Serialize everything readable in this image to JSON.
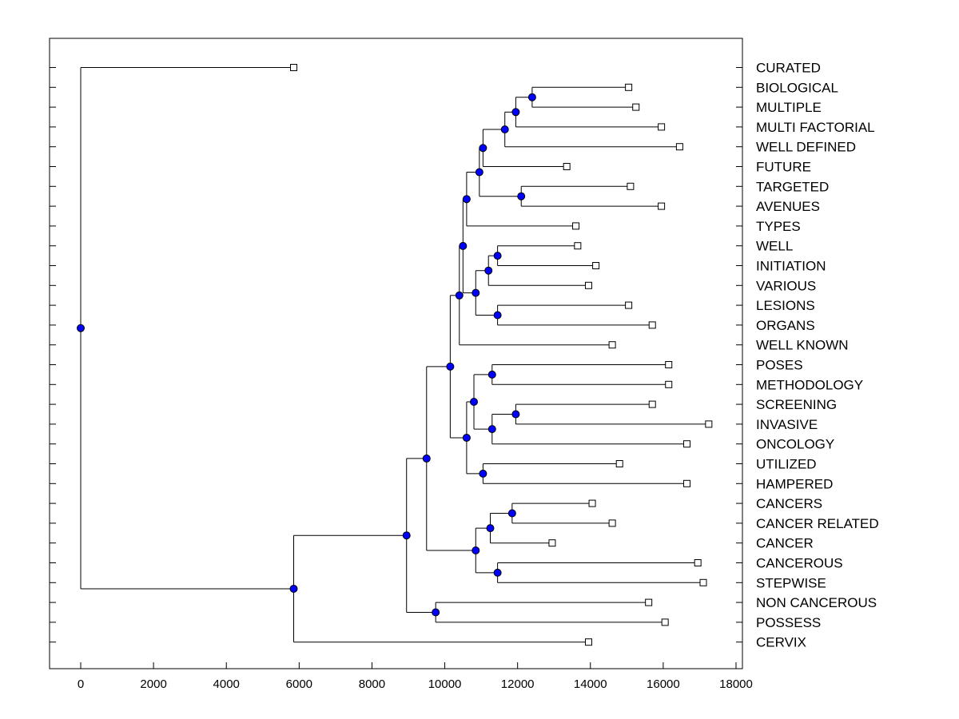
{
  "chart_data": {
    "type": "dendrogram",
    "title": "",
    "xlabel": "",
    "ylabel": "",
    "xlim": [
      -800,
      18000
    ],
    "xticks": [
      0,
      2000,
      4000,
      6000,
      8000,
      10000,
      12000,
      14000,
      16000,
      18000
    ],
    "x_tick_labels": [
      "0",
      "2000",
      "4000",
      "6000",
      "8000",
      "10000",
      "12000",
      "14000",
      "16000",
      "18000"
    ],
    "node_color": "#0000ff",
    "leaves": [
      {
        "label": "CURATED",
        "value": 5850
      },
      {
        "label": "BIOLOGICAL",
        "value": 15050
      },
      {
        "label": "MULTIPLE",
        "value": 15250
      },
      {
        "label": "MULTI FACTORIAL",
        "value": 15950
      },
      {
        "label": "WELL DEFINED",
        "value": 16450
      },
      {
        "label": "FUTURE",
        "value": 13350
      },
      {
        "label": "TARGETED",
        "value": 15100
      },
      {
        "label": "AVENUES",
        "value": 15950
      },
      {
        "label": "TYPES",
        "value": 13600
      },
      {
        "label": "WELL",
        "value": 13650
      },
      {
        "label": "INITIATION",
        "value": 14150
      },
      {
        "label": "VARIOUS",
        "value": 13950
      },
      {
        "label": "LESIONS",
        "value": 15050
      },
      {
        "label": "ORGANS",
        "value": 15700
      },
      {
        "label": "WELL KNOWN",
        "value": 14600
      },
      {
        "label": "POSES",
        "value": 16150
      },
      {
        "label": "METHODOLOGY",
        "value": 16150
      },
      {
        "label": "SCREENING",
        "value": 15700
      },
      {
        "label": "INVASIVE",
        "value": 17250
      },
      {
        "label": "ONCOLOGY",
        "value": 16650
      },
      {
        "label": "UTILIZED",
        "value": 14800
      },
      {
        "label": "HAMPERED",
        "value": 16650
      },
      {
        "label": "CANCERS",
        "value": 14050
      },
      {
        "label": "CANCER RELATED",
        "value": 14600
      },
      {
        "label": "CANCER",
        "value": 12950
      },
      {
        "label": "CANCEROUS",
        "value": 16950
      },
      {
        "label": "STEPWISE",
        "value": 17100
      },
      {
        "label": "NON CANCEROUS",
        "value": 15600
      },
      {
        "label": "POSSESS",
        "value": 16050
      },
      {
        "label": "CERVIX",
        "value": 13950
      }
    ],
    "merges": [
      {
        "id": "m1",
        "x": 12400,
        "children": [
          "BIOLOGICAL",
          "MULTIPLE"
        ]
      },
      {
        "id": "m2",
        "x": 11950,
        "children": [
          "m1",
          "MULTI FACTORIAL"
        ]
      },
      {
        "id": "m3",
        "x": 11650,
        "children": [
          "m2",
          "WELL DEFINED"
        ]
      },
      {
        "id": "m4",
        "x": 11050,
        "children": [
          "m3",
          "FUTURE"
        ]
      },
      {
        "id": "m5",
        "x": 12100,
        "children": [
          "TARGETED",
          "AVENUES"
        ]
      },
      {
        "id": "m6",
        "x": 10950,
        "children": [
          "m4",
          "m5"
        ]
      },
      {
        "id": "m7",
        "x": 10600,
        "children": [
          "m6",
          "TYPES"
        ]
      },
      {
        "id": "m8",
        "x": 11450,
        "children": [
          "WELL",
          "INITIATION"
        ]
      },
      {
        "id": "m9",
        "x": 11200,
        "children": [
          "m8",
          "VARIOUS"
        ]
      },
      {
        "id": "m10",
        "x": 11450,
        "children": [
          "LESIONS",
          "ORGANS"
        ]
      },
      {
        "id": "m11",
        "x": 10850,
        "children": [
          "m9",
          "m10"
        ]
      },
      {
        "id": "m12",
        "x": 10500,
        "children": [
          "m7",
          "m11"
        ]
      },
      {
        "id": "m13",
        "x": 10400,
        "children": [
          "m12",
          "WELL KNOWN"
        ]
      },
      {
        "id": "m14",
        "x": 11300,
        "children": [
          "POSES",
          "METHODOLOGY"
        ]
      },
      {
        "id": "m15",
        "x": 11950,
        "children": [
          "SCREENING",
          "INVASIVE"
        ]
      },
      {
        "id": "m16",
        "x": 11300,
        "children": [
          "m15",
          "ONCOLOGY"
        ]
      },
      {
        "id": "m17",
        "x": 10800,
        "children": [
          "m14",
          "m16"
        ]
      },
      {
        "id": "m18",
        "x": 11050,
        "children": [
          "UTILIZED",
          "HAMPERED"
        ]
      },
      {
        "id": "m19",
        "x": 10600,
        "children": [
          "m17",
          "m18"
        ]
      },
      {
        "id": "m20",
        "x": 10150,
        "children": [
          "m13",
          "m19"
        ]
      },
      {
        "id": "m21",
        "x": 11850,
        "children": [
          "CANCERS",
          "CANCER RELATED"
        ]
      },
      {
        "id": "m22",
        "x": 11250,
        "children": [
          "m21",
          "CANCER"
        ]
      },
      {
        "id": "m23",
        "x": 11450,
        "children": [
          "CANCEROUS",
          "STEPWISE"
        ]
      },
      {
        "id": "m24",
        "x": 10850,
        "children": [
          "m22",
          "m23"
        ]
      },
      {
        "id": "m25",
        "x": 9500,
        "children": [
          "m20",
          "m24"
        ]
      },
      {
        "id": "m26",
        "x": 9750,
        "children": [
          "NON CANCEROUS",
          "POSSESS"
        ]
      },
      {
        "id": "m27",
        "x": 8950,
        "children": [
          "m25",
          "m26"
        ]
      },
      {
        "id": "m28",
        "x": 5850,
        "children": [
          "m27",
          "CERVIX"
        ]
      },
      {
        "id": "m29",
        "x": 0,
        "children": [
          "CURATED",
          "m28"
        ]
      }
    ]
  }
}
